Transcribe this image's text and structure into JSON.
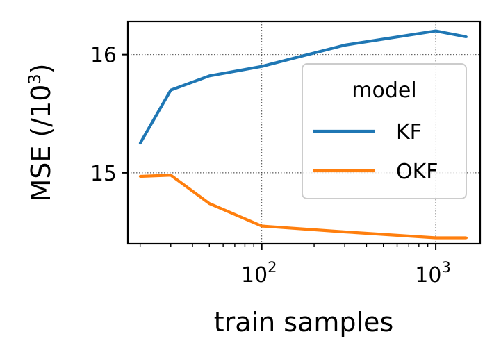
{
  "chart_data": {
    "type": "line",
    "xlabel": "train samples",
    "ylabel": "MSE (/10",
    "ylabel_sup": "3",
    "ylabel_close": ")",
    "xscale": "log",
    "xlim": [
      17,
      1800
    ],
    "ylim": [
      14.4,
      16.28
    ],
    "grid": true,
    "legend": {
      "title": "model",
      "placement": "right"
    },
    "x_ticks": [
      {
        "value": 100,
        "base": "10",
        "exp": "2"
      },
      {
        "value": 1000,
        "base": "10",
        "exp": "3"
      }
    ],
    "y_ticks": [
      {
        "value": 15,
        "label": "15"
      },
      {
        "value": 16,
        "label": "16"
      }
    ],
    "x": [
      20,
      30,
      50,
      100,
      300,
      1000,
      1500
    ],
    "series": [
      {
        "name": "KF",
        "color": "#1f77b4",
        "values": [
          15.25,
          15.7,
          15.82,
          15.9,
          16.08,
          16.2,
          16.15
        ]
      },
      {
        "name": "OKF",
        "color": "#ff7f0e",
        "values": [
          14.97,
          14.98,
          14.74,
          14.55,
          14.5,
          14.45,
          14.45
        ]
      }
    ]
  }
}
